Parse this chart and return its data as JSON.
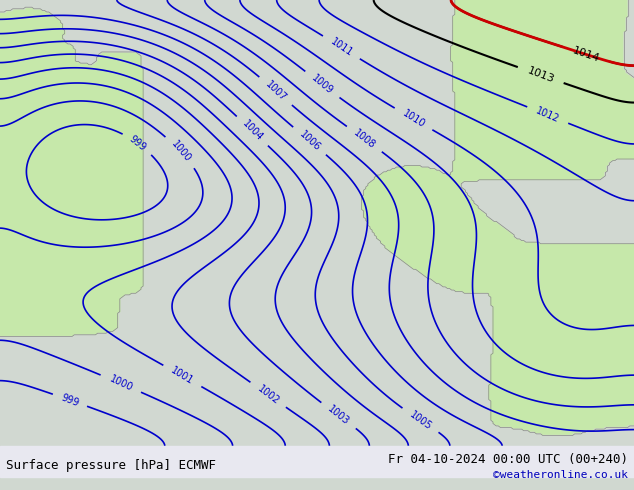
{
  "title_left": "Surface pressure [hPa] ECMWF",
  "title_right": "Fr 04-10-2024 00:00 UTC (00+240)",
  "watermark": "©weatheronline.co.uk",
  "bg_color": "#d0d8d0",
  "land_color": "#c8e8b0",
  "contour_color_blue": "#0000cc",
  "contour_color_black": "#000000",
  "contour_color_red": "#cc0000",
  "figsize": [
    6.34,
    4.9
  ],
  "dpi": 100,
  "bottom_bar_color": "#e8e8e8",
  "title_fontsize": 9,
  "label_fontsize": 7
}
